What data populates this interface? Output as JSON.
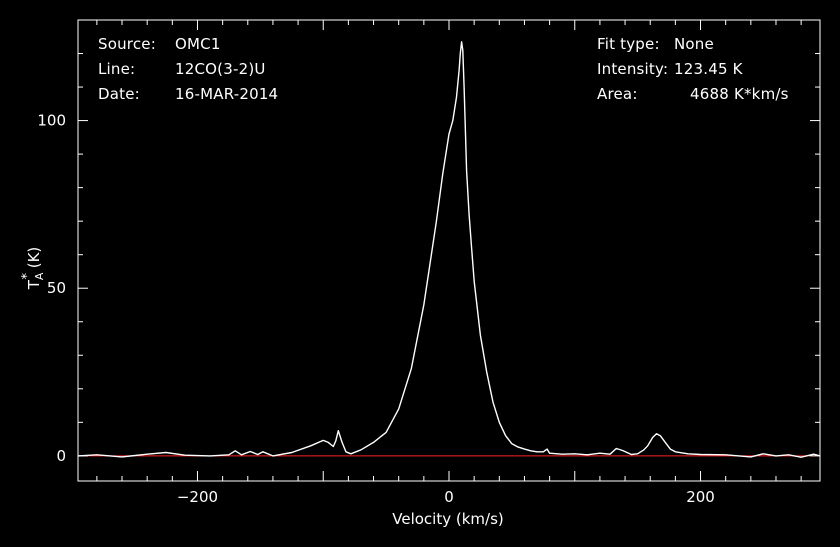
{
  "header": {
    "source_label": "Source:",
    "source_value": "OMC1",
    "line_label": "Line:",
    "line_value": "12CO(3-2)U",
    "date_label": "Date:",
    "date_value": "16-MAR-2014",
    "fit_label": "Fit type:",
    "fit_value": "None",
    "intensity_label": "Intensity:",
    "intensity_value": "123.45 K",
    "area_label": "Area:",
    "area_value": "4688 K*km/s"
  },
  "chart_data": {
    "type": "line",
    "title": "",
    "xlabel": "Velocity (km/s)",
    "ylabel_main": "T",
    "ylabel_sub": "A",
    "ylabel_sup": "*",
    "ylabel_unit": " (K)",
    "xlim": [
      -295,
      295
    ],
    "ylim": [
      -7.5,
      130
    ],
    "xticks": [
      -200,
      0,
      200
    ],
    "xtick_labels": [
      "−200",
      "0",
      "200"
    ],
    "yticks": [
      0,
      50,
      100
    ],
    "ytick_labels": [
      "0",
      "50",
      "100"
    ],
    "baseline": 0,
    "grid": false,
    "colors": {
      "background": "#000000",
      "axes": "#ffffff",
      "series": "#ffffff",
      "baseline": "#ff2020"
    },
    "series": [
      {
        "x": [
          -295,
          -280,
          -260,
          -240,
          -225,
          -210,
          -190,
          -175,
          -170,
          -165,
          -158,
          -152,
          -148,
          -140,
          -125,
          -110,
          -100,
          -96,
          -92,
          -90,
          -88,
          -85,
          -82,
          -78,
          -70,
          -60,
          -50,
          -40,
          -30,
          -20,
          -10,
          -5,
          0,
          3,
          6,
          8,
          9,
          10,
          11,
          12,
          14,
          16,
          18,
          20,
          25,
          30,
          35,
          40,
          45,
          50,
          55,
          60,
          65,
          70,
          75,
          78,
          80,
          90,
          100,
          110,
          120,
          128,
          133,
          138,
          145,
          150,
          155,
          158,
          162,
          165,
          168,
          172,
          176,
          180,
          190,
          200,
          220,
          240,
          250,
          260,
          270,
          280,
          290,
          295
        ],
        "y": [
          0,
          0.3,
          -0.3,
          0.5,
          1,
          0.2,
          0,
          0.3,
          1.5,
          0.3,
          1.3,
          0.4,
          1.2,
          0,
          1,
          3,
          4.6,
          4,
          2.8,
          4.5,
          7.5,
          4,
          1.2,
          0.6,
          1.8,
          4,
          7,
          14,
          26,
          45,
          70,
          84,
          96,
          100,
          107,
          115,
          120,
          123.5,
          121,
          110,
          85,
          72,
          62,
          52,
          36,
          25,
          16,
          10,
          6,
          3.6,
          2.6,
          2,
          1.5,
          1.2,
          1.2,
          2,
          0.8,
          0.5,
          0.6,
          0.3,
          0.8,
          0.5,
          2.2,
          1.6,
          0.4,
          0.6,
          1.8,
          3,
          5.5,
          6.6,
          6,
          4,
          2,
          1.2,
          0.6,
          0.4,
          0.3,
          -0.3,
          0.6,
          0,
          0.3,
          -0.4,
          0.5,
          0
        ]
      }
    ]
  }
}
